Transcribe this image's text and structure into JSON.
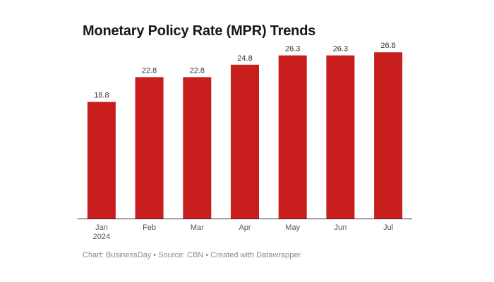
{
  "chart_data": {
    "type": "bar",
    "title": "Monetary Policy Rate (MPR) Trends",
    "categories": [
      "Jan",
      "Feb",
      "Mar",
      "Apr",
      "May",
      "Jun",
      "Jul"
    ],
    "category_sublabels": [
      "2024",
      "",
      "",
      "",
      "",
      "",
      ""
    ],
    "values": [
      18.8,
      22.8,
      22.8,
      24.8,
      26.3,
      26.3,
      26.8
    ],
    "value_labels": [
      "18.8",
      "22.8",
      "22.8",
      "24.8",
      "26.3",
      "26.3",
      "26.8"
    ],
    "ylim": [
      0,
      27.5
    ],
    "xlabel": "",
    "ylabel": "",
    "grid": false,
    "bar_color": "#c81e1e",
    "footer": "Chart: BusinessDay • Source: CBN • Created with Datawrapper"
  }
}
